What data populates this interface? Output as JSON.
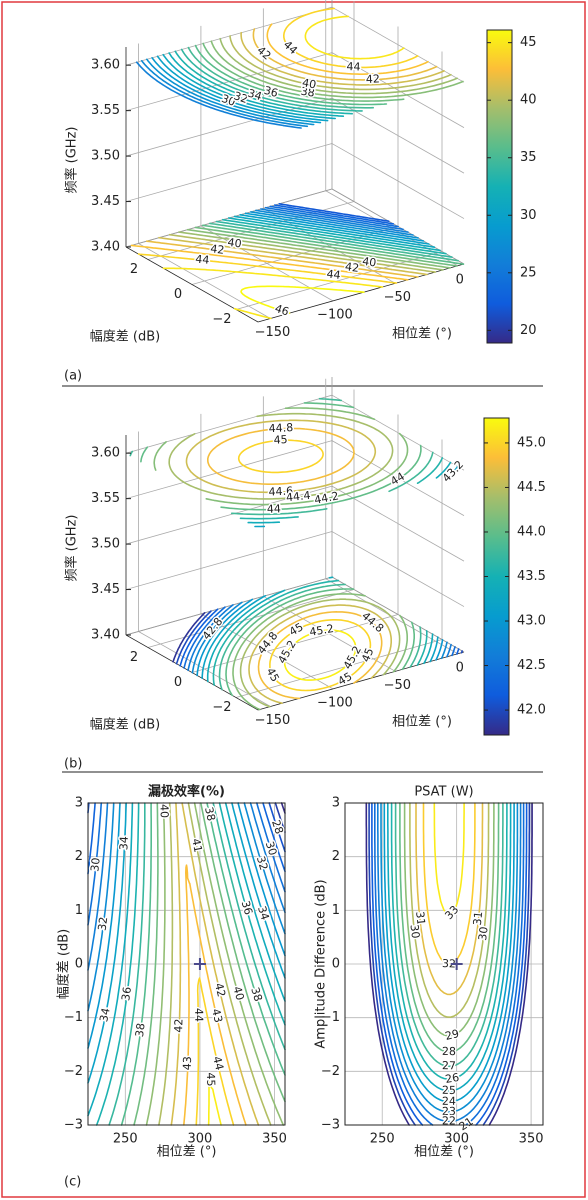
{
  "chart_data": [
    {
      "type": "contour3d",
      "panel_label": "(a)",
      "colormap": "parula",
      "zlabel": "频率 (GHz)",
      "ylabel": "幅度差 (dB)",
      "xlabel": "相位差 (°)",
      "xlim": [
        -160,
        5
      ],
      "xticks": [
        {
          "value": -150,
          "label": "−150"
        },
        {
          "value": -100,
          "label": "−100"
        },
        {
          "value": -50,
          "label": "−50"
        },
        0
      ],
      "ylim": [
        -3,
        3
      ],
      "yticks": [
        {
          "value": -2,
          "label": "−2"
        },
        0,
        2
      ],
      "zlim": [
        3.4,
        3.62
      ],
      "zticks": [
        {
          "value": 3.4,
          "label": "3.40"
        },
        3.45,
        {
          "value": 3.5,
          "label": "3.50"
        },
        3.55,
        {
          "value": 3.6,
          "label": "3.60"
        }
      ],
      "clim": [
        18.9,
        46.1
      ],
      "cticks": [
        20,
        25,
        30,
        35,
        40,
        45
      ],
      "planes": [
        {
          "z": 3.6,
          "levels": [
            26,
            27,
            28,
            29,
            30,
            31,
            32,
            33,
            34,
            35,
            36,
            37,
            38,
            39,
            40,
            41,
            42,
            43,
            44,
            45
          ],
          "labels": [
            30,
            32,
            34,
            36,
            38,
            40,
            42,
            44,
            42,
            44
          ]
        },
        {
          "z": 3.4,
          "levels": [
            22,
            23,
            24,
            25,
            26,
            27,
            28,
            29,
            30,
            31,
            32,
            33,
            34,
            35,
            36,
            37,
            38,
            39,
            40,
            41,
            42,
            43,
            44,
            45,
            46
          ],
          "labels": [
            40,
            42,
            44,
            46,
            40,
            42,
            44
          ]
        }
      ]
    },
    {
      "type": "contour3d",
      "panel_label": "(b)",
      "colormap": "parula",
      "zlabel": "频率 (GHz)",
      "ylabel": "幅度差 (dB)",
      "xlabel": "相位差 (°)",
      "xlim": [
        -160,
        5
      ],
      "xticks": [
        {
          "value": -150,
          "label": "−150"
        },
        {
          "value": -100,
          "label": "−100"
        },
        {
          "value": -50,
          "label": "−50"
        },
        0
      ],
      "ylim": [
        -3,
        3
      ],
      "yticks": [
        {
          "value": -2,
          "label": "−2"
        },
        0,
        2
      ],
      "zlim": [
        3.4,
        3.62
      ],
      "zticks": [
        {
          "value": 3.4,
          "label": "3.40"
        },
        3.45,
        {
          "value": 3.5,
          "label": "3.50"
        },
        3.55,
        {
          "value": 3.6,
          "label": "3.60"
        }
      ],
      "clim": [
        41.72,
        45.28
      ],
      "cticks": [
        {
          "value": 42,
          "label": "42.0"
        },
        42.5,
        {
          "value": 43,
          "label": "43.0"
        },
        43.5,
        {
          "value": 44,
          "label": "44.0"
        },
        44.5,
        {
          "value": 45,
          "label": "45.0"
        }
      ],
      "planes": [
        {
          "z": 3.6,
          "levels": [
            42.8,
            43,
            43.2,
            43.4,
            43.6,
            43.8,
            44,
            44.2,
            44.4,
            44.6,
            44.8,
            45
          ],
          "labels": [
            45,
            44.8,
            44.6,
            44.4,
            44,
            44.2,
            44,
            43.2,
            43
          ]
        },
        {
          "z": 3.4,
          "levels": [
            41.8,
            42,
            42.2,
            42.4,
            42.6,
            42.8,
            43,
            43.2,
            43.4,
            43.6,
            43.8,
            44,
            44.2,
            44.4,
            44.6,
            44.8,
            45,
            45.2
          ],
          "labels": [
            42.8,
            45.2,
            45,
            45,
            45.2,
            45.2,
            45,
            44.8,
            44.8,
            45
          ]
        }
      ]
    },
    {
      "type": "contour",
      "panel_label": "(c)",
      "colormap": "parula",
      "title": "漏极效率(%)",
      "xlabel": "相位差 (°)",
      "ylabel": "幅度差 (dB)",
      "xlim": [
        225,
        357
      ],
      "xticks": [
        250,
        300,
        350
      ],
      "ylim": [
        -3,
        3
      ],
      "yticks": [
        {
          "value": -3,
          "label": "−3"
        },
        {
          "value": -2,
          "label": "−2"
        },
        {
          "value": -1,
          "label": "−1"
        },
        0,
        1,
        2,
        3
      ],
      "grid": true,
      "clim": [
        26,
        45.5
      ],
      "levels": [
        26,
        27,
        28,
        29,
        30,
        31,
        32,
        33,
        34,
        35,
        36,
        37,
        38,
        39,
        40,
        41,
        42,
        43,
        44,
        45
      ],
      "labels": [
        30,
        32,
        34,
        36,
        38,
        28,
        30,
        32,
        34,
        36,
        40,
        43,
        41,
        34,
        38,
        42,
        44,
        45,
        43,
        44,
        42,
        40,
        38
      ],
      "marker": {
        "x": 300,
        "y": 0
      }
    },
    {
      "type": "contour",
      "colormap": "parula",
      "title": "PSAT (W)",
      "xlabel": "相位差 (°)",
      "ylabel": "Amplitude Difference (dB)",
      "xlim": [
        225,
        358
      ],
      "xticks": [
        250,
        300,
        350
      ],
      "ylim": [
        -3,
        3
      ],
      "yticks": [
        {
          "value": -3,
          "label": "−3"
        },
        {
          "value": -2,
          "label": "−2"
        },
        {
          "value": -1,
          "label": "−1"
        },
        0,
        1,
        2,
        3
      ],
      "grid": true,
      "clim": [
        18,
        33.5
      ],
      "levels": [
        18,
        19,
        20,
        21,
        22,
        23,
        24,
        25,
        26,
        27,
        28,
        29,
        30,
        31,
        32,
        33
      ],
      "labels": [
        33,
        31,
        30,
        29,
        32,
        31,
        30,
        28,
        27,
        26,
        25,
        24,
        23,
        22,
        21
      ],
      "marker": {
        "x": 300,
        "y": 0
      }
    }
  ]
}
